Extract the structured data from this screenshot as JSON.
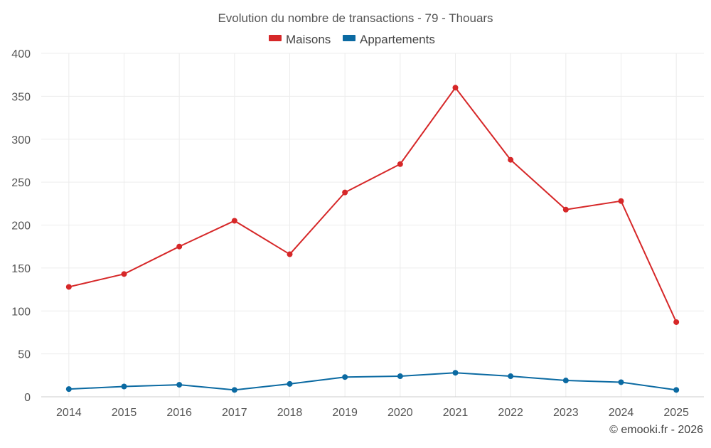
{
  "chart_data": {
    "type": "line",
    "title": "Evolution du nombre de transactions - 79 - Thouars",
    "xlabel": "",
    "ylabel": "",
    "categories": [
      "2014",
      "2015",
      "2016",
      "2017",
      "2018",
      "2019",
      "2020",
      "2021",
      "2022",
      "2023",
      "2024",
      "2025"
    ],
    "ylim": [
      0,
      400
    ],
    "yticks": [
      0,
      50,
      100,
      150,
      200,
      250,
      300,
      350,
      400
    ],
    "grid": true,
    "legend_position": "top-center",
    "series": [
      {
        "name": "Maisons",
        "color": "#d62728",
        "values": [
          128,
          143,
          175,
          205,
          166,
          238,
          271,
          360,
          276,
          218,
          228,
          87
        ]
      },
      {
        "name": "Appartements",
        "color": "#0b6aa2",
        "values": [
          9,
          12,
          14,
          8,
          15,
          23,
          24,
          28,
          24,
          19,
          17,
          8
        ]
      }
    ]
  },
  "credit": "© emooki.fr - 2026"
}
